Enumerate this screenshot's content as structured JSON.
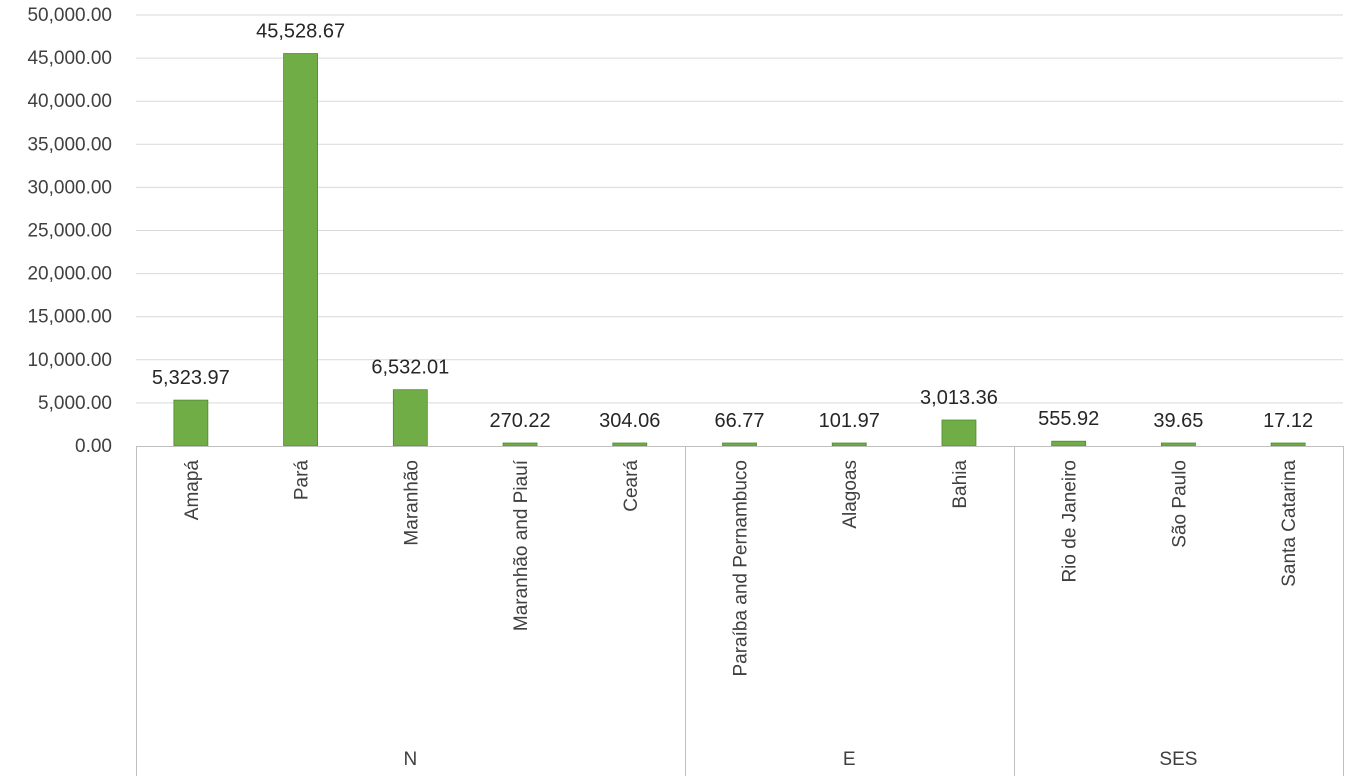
{
  "chart_data": {
    "type": "bar",
    "title": "",
    "xlabel": "",
    "ylabel": "",
    "ylim": [
      0,
      50000
    ],
    "yticks": [
      0,
      5000,
      10000,
      15000,
      20000,
      25000,
      30000,
      35000,
      40000,
      45000,
      50000
    ],
    "ytick_labels": [
      "0.00",
      "5,000.00",
      "10,000.00",
      "15,000.00",
      "20,000.00",
      "25,000.00",
      "30,000.00",
      "35,000.00",
      "40,000.00",
      "45,000.00",
      "50,000.00"
    ],
    "grid": true,
    "legend": "none",
    "bar_color": "#70ad47",
    "bar_edge_color": "#4f8a2f",
    "categories": [
      "Amapá",
      "Pará",
      "Maranhão",
      "Maranhão and Piauí",
      "Ceará",
      "Paraíba and Pernambuco",
      "Alagoas",
      "Bahia",
      "Rio de Janeiro",
      "São Paulo",
      "Santa Catarina"
    ],
    "values": [
      5323.97,
      45528.67,
      6532.01,
      270.22,
      304.06,
      66.77,
      101.97,
      3013.36,
      555.92,
      39.65,
      17.12
    ],
    "data_labels": [
      "5,323.97",
      "45,528.67",
      "6,532.01",
      "270.22",
      "304.06",
      "66.77",
      "101.97",
      "3,013.36",
      "555.92",
      "39.65",
      "17.12"
    ],
    "groups": [
      {
        "label": "N",
        "start": 0,
        "end": 4
      },
      {
        "label": "E",
        "start": 5,
        "end": 7
      },
      {
        "label": "SES",
        "start": 8,
        "end": 10
      }
    ]
  }
}
